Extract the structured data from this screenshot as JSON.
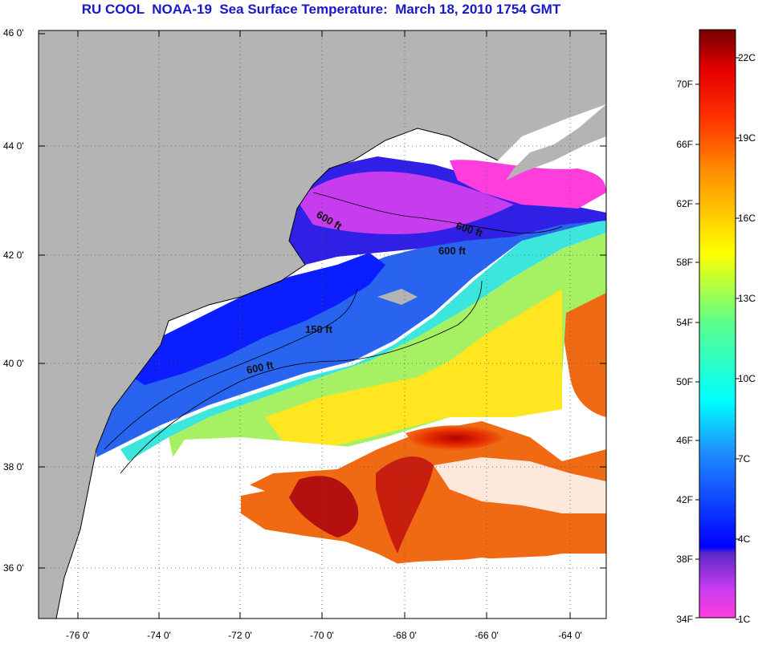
{
  "title": "RU COOL  NOAA-19  Sea Surface Temperature:  March 18, 2010 1754 GMT",
  "map": {
    "lat_labels": [
      "46 0'",
      "44 0'",
      "42 0'",
      "40 0'",
      "38 0'",
      "36 0'"
    ],
    "lon_labels": [
      "-76 0'",
      "-74 0'",
      "-72 0'",
      "-70 0'",
      "-68 0'",
      "-66 0'",
      "-64 0'"
    ],
    "contour_labels": [
      "600 ft",
      "600 ft",
      "600 ft",
      "150 ft",
      "600 ft"
    ],
    "colors": {
      "land": "#b4b4b4",
      "cloud": "#ffffff",
      "coast": "#000000"
    }
  },
  "colorbar": {
    "fahrenheit_labels": [
      "70F",
      "66F",
      "62F",
      "58F",
      "54F",
      "50F",
      "46F",
      "42F",
      "38F",
      "34F"
    ],
    "celsius_labels": [
      "22C",
      "19C",
      "16C",
      "13C",
      "10C",
      "7C",
      "4C",
      "1C"
    ]
  }
}
